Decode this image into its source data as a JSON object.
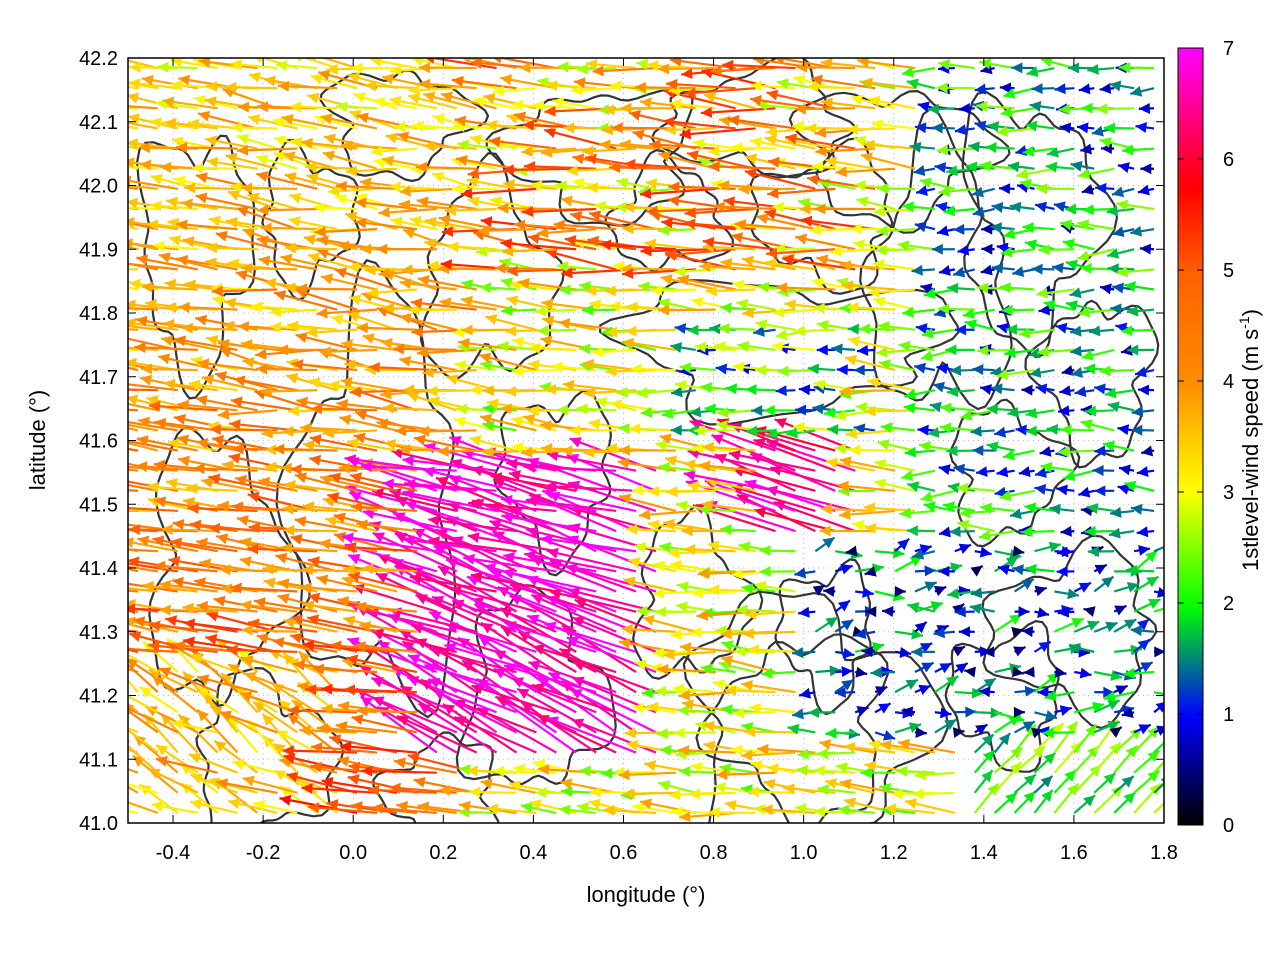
{
  "chart_data": {
    "type": "vector-field",
    "xlabel": "longitude (°)",
    "ylabel": "latitude (°)",
    "xlim": [
      -0.5,
      1.8
    ],
    "ylim": [
      41.0,
      42.2
    ],
    "xticks": [
      "-0.4",
      "-0.2",
      "0.0",
      "0.2",
      "0.4",
      "0.6",
      "0.8",
      "1.0",
      "1.2",
      "1.4",
      "1.6",
      "1.8"
    ],
    "xtick_values": [
      -0.4,
      -0.2,
      0.0,
      0.2,
      0.4,
      0.6,
      0.8,
      1.0,
      1.2,
      1.4,
      1.6,
      1.8
    ],
    "yticks": [
      "41.0",
      "41.1",
      "41.2",
      "41.3",
      "41.4",
      "41.5",
      "41.6",
      "41.7",
      "41.8",
      "41.9",
      "42.0",
      "42.1",
      "42.2"
    ],
    "ytick_values": [
      41.0,
      41.1,
      41.2,
      41.3,
      41.4,
      41.5,
      41.6,
      41.7,
      41.8,
      41.9,
      42.0,
      42.1,
      42.2
    ],
    "grid": true,
    "colorbar": {
      "label": "1stlevel-wind speed (m s",
      "label_sup": "-1",
      "label_close": ")",
      "ticks": [
        "0",
        "1",
        "2",
        "3",
        "4",
        "5",
        "6",
        "7"
      ],
      "tick_values": [
        0,
        1,
        2,
        3,
        4,
        5,
        6,
        7
      ],
      "range": [
        0,
        7
      ],
      "colors": [
        "#000000",
        "#0000ff",
        "#00ff00",
        "#ffff00",
        "#ff8c00",
        "#ff0000",
        "#ff00ff"
      ]
    },
    "contour_color": "#333333",
    "vector_regions": [
      {
        "area": "west",
        "lon": [
          -0.5,
          0.3
        ],
        "lat": [
          41.0,
          42.2
        ],
        "speed": [
          3.5,
          6.2
        ],
        "direction": "westward"
      },
      {
        "area": "center",
        "lon": [
          0.2,
          0.7
        ],
        "lat": [
          41.1,
          41.55
        ],
        "speed": [
          6.0,
          7.0
        ],
        "direction": "west-northwest"
      },
      {
        "area": "north",
        "lon": [
          0.3,
          1.2
        ],
        "lat": [
          41.8,
          42.2
        ],
        "speed": [
          2.0,
          5.5
        ],
        "direction": "westward"
      },
      {
        "area": "east",
        "lon": [
          1.2,
          1.8
        ],
        "lat": [
          41.5,
          42.2
        ],
        "speed": [
          0.5,
          2.5
        ],
        "direction": "westward"
      },
      {
        "area": "southeast",
        "lon": [
          1.0,
          1.8
        ],
        "lat": [
          41.0,
          41.45
        ],
        "speed": [
          0.3,
          2.5
        ],
        "direction": "eastward-northeast"
      }
    ]
  }
}
